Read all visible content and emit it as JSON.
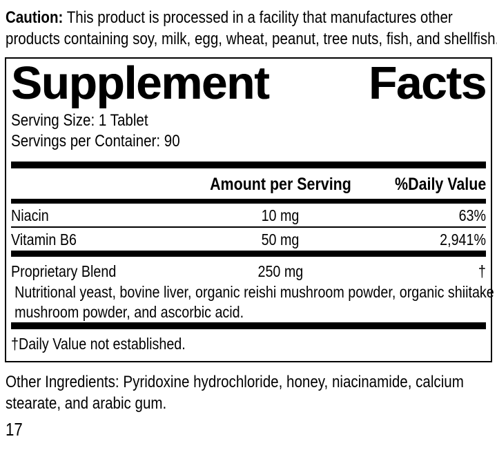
{
  "caution": {
    "label": "Caution:",
    "text": " This product is processed in a facility that manufactures other products containing soy, milk, egg, wheat, peanut, tree nuts, fish, and shellfish."
  },
  "supplement_facts": {
    "title_word_1": "Supplement",
    "title_word_2": "Facts",
    "serving_size": "Serving Size: 1 Tablet",
    "servings_per_container": "Servings per Container: 90",
    "header": {
      "amount_column": "Amount per Serving",
      "daily_value_column": "%Daily Value"
    },
    "rows": [
      {
        "name": "Niacin",
        "amount": "10 mg",
        "daily_value": "63%"
      },
      {
        "name": "Vitamin B6",
        "amount": "50 mg",
        "daily_value": "2,941%"
      },
      {
        "name": "Proprietary Blend",
        "amount": "250 mg",
        "daily_value": "†",
        "description": "Nutritional yeast, bovine liver, organic reishi mushroom powder, organic shiitake mushroom powder, and ascorbic acid."
      }
    ],
    "footnote": "†Daily Value not established."
  },
  "other_ingredients": "Other Ingredients: Pyridoxine hydrochloride, honey, niacinamide, calcium stearate, and arabic gum.",
  "page_number": "17",
  "colors": {
    "text": "#000000",
    "background": "#ffffff",
    "rule": "#000000"
  }
}
